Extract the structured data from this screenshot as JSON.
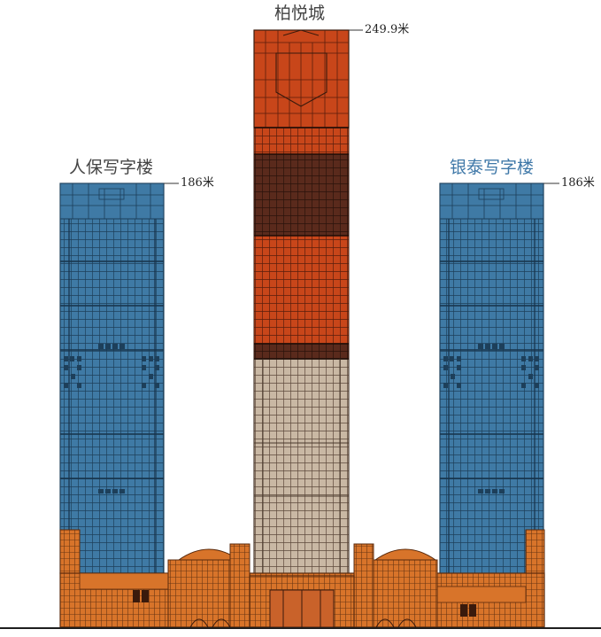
{
  "colors": {
    "blue_tower": "#3f7aa5",
    "blue_line": "#1d3f5a",
    "red_section": "#c8461a",
    "dark_section": "#5a2a1c",
    "beige_section": "#c9b8a4",
    "podium": "#d8742a",
    "line_dark": "#3a2418",
    "label_gray": "#444444",
    "label_blue": "#3f78a8"
  },
  "towers": {
    "left": {
      "name": "人保写字楼",
      "height_label": "186米"
    },
    "center": {
      "name": "柏悦城",
      "height_label": "249.9米"
    },
    "right": {
      "name": "银泰写字楼",
      "height_label": "186米"
    }
  }
}
